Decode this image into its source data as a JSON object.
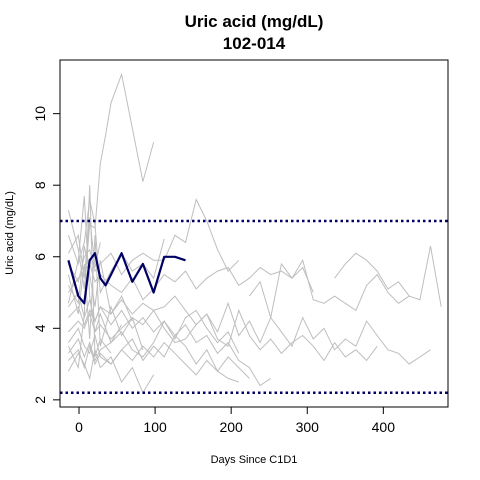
{
  "chart_data": {
    "type": "line",
    "title": "Uric acid (mg/dL)",
    "subtitle": "102-014",
    "xlabel": "Days Since C1D1",
    "ylabel": "Uric acid (mg/dL)",
    "xlim": [
      -25,
      485
    ],
    "ylim": [
      1.8,
      11.5
    ],
    "x_ticks": [
      0,
      100,
      200,
      300,
      400
    ],
    "y_ticks": [
      2,
      4,
      6,
      8,
      10
    ],
    "reference_lines": [
      7.0,
      2.2
    ],
    "colors": {
      "background_series": "#bebebe",
      "highlight": "#000066",
      "reference": "#000066"
    },
    "highlight_series": {
      "name": "102-014",
      "x": [
        -14,
        -1,
        7,
        14,
        21,
        28,
        35,
        42,
        56,
        70,
        84,
        98,
        112,
        126,
        140
      ],
      "y": [
        5.9,
        4.9,
        4.7,
        5.9,
        6.1,
        5.4,
        5.2,
        5.5,
        6.1,
        5.3,
        5.8,
        5.0,
        6.0,
        6.0,
        5.9
      ]
    },
    "background_series": [
      {
        "x": [
          -14,
          -1,
          7,
          14,
          21,
          28,
          35,
          42,
          56,
          70,
          84,
          98
        ],
        "y": [
          7.3,
          6.2,
          5.1,
          6.9,
          6.8,
          8.6,
          9.4,
          10.3,
          11.1,
          9.6,
          8.1,
          9.2
        ]
      },
      {
        "x": [
          -14,
          -1,
          7,
          14,
          21,
          28,
          42,
          56,
          70,
          84,
          98,
          112
        ],
        "y": [
          6.6,
          5.8,
          6.4,
          7.6,
          6.9,
          5.0,
          5.6,
          6.1,
          5.6,
          5.8,
          5.4,
          6.5
        ]
      },
      {
        "x": [
          -14,
          -1,
          7,
          14,
          21,
          28,
          42,
          56,
          70,
          84,
          98,
          112,
          126,
          140,
          154,
          168,
          182,
          196,
          210
        ],
        "y": [
          5.8,
          5.3,
          6.0,
          6.2,
          5.6,
          5.8,
          6.1,
          5.5,
          5.9,
          6.1,
          5.9,
          5.9,
          6.6,
          6.4,
          7.6,
          7.0,
          6.2,
          5.6,
          5.9
        ]
      },
      {
        "x": [
          -14,
          -1,
          7,
          14,
          21,
          28,
          42,
          56,
          70,
          84,
          98,
          112,
          126,
          140,
          154,
          168,
          182,
          196,
          210,
          224,
          238,
          252,
          266,
          280,
          294,
          308
        ],
        "y": [
          5.0,
          5.4,
          5.6,
          5.8,
          5.3,
          5.5,
          5.2,
          5.0,
          5.4,
          4.8,
          5.1,
          5.5,
          5.3,
          5.6,
          5.1,
          5.4,
          5.6,
          5.7,
          5.2,
          5.4,
          5.7,
          5.5,
          5.6,
          5.4,
          5.7,
          5.0
        ]
      },
      {
        "x": [
          336,
          350,
          364,
          378,
          392,
          406,
          420,
          434,
          448,
          462,
          476
        ],
        "y": [
          5.4,
          5.8,
          6.1,
          5.9,
          5.6,
          5.1,
          5.3,
          4.9,
          4.8,
          6.3,
          4.6
        ]
      },
      {
        "x": [
          224,
          238,
          252,
          266,
          280,
          294,
          308,
          322,
          336,
          350,
          364,
          378,
          392,
          406,
          420,
          434
        ],
        "y": [
          4.9,
          5.3,
          4.3,
          5.8,
          5.4,
          5.9,
          4.8,
          4.7,
          4.9,
          4.7,
          4.5,
          5.2,
          5.5,
          5.0,
          4.7,
          4.9
        ]
      },
      {
        "x": [
          -14,
          -1,
          7,
          14,
          21,
          28,
          42,
          56,
          70,
          84,
          98,
          112,
          126,
          140,
          154,
          168,
          182,
          196,
          210,
          224,
          238,
          252,
          266,
          280,
          294,
          308,
          322,
          336,
          350,
          364,
          378,
          392,
          406,
          420,
          434,
          448,
          462
        ],
        "y": [
          4.3,
          4.6,
          4.1,
          4.5,
          4.2,
          4.6,
          4.4,
          4.8,
          4.4,
          4.7,
          4.5,
          4.6,
          4.9,
          4.5,
          4.1,
          4.4,
          3.9,
          4.7,
          3.8,
          4.2,
          3.6,
          4.3,
          3.9,
          3.5,
          4.3,
          3.7,
          4.0,
          3.4,
          3.7,
          3.5,
          4.2,
          3.8,
          3.4,
          3.3,
          3.0,
          3.2,
          3.4
        ]
      },
      {
        "x": [
          -14,
          -1,
          7,
          14,
          21,
          28,
          42,
          56,
          70,
          84,
          98,
          112,
          126,
          140,
          154,
          168,
          182,
          196,
          210,
          224,
          238,
          252,
          266,
          280,
          294,
          308,
          322,
          336,
          350,
          364,
          378,
          392
        ],
        "y": [
          3.9,
          4.2,
          4.0,
          4.4,
          3.9,
          4.1,
          3.7,
          4.0,
          4.3,
          4.1,
          4.5,
          4.0,
          3.6,
          3.7,
          4.1,
          4.4,
          3.7,
          3.5,
          4.5,
          3.8,
          3.4,
          3.7,
          3.3,
          3.6,
          3.8,
          3.5,
          3.1,
          3.6,
          3.2,
          3.4,
          3.1,
          3.5
        ]
      },
      {
        "x": [
          -14,
          -1,
          7,
          14,
          21,
          28,
          42,
          56,
          70,
          84,
          98,
          112,
          126,
          140,
          154,
          168,
          182,
          196,
          210
        ],
        "y": [
          3.3,
          3.7,
          3.2,
          3.6,
          3.1,
          3.4,
          3.6,
          3.9,
          3.4,
          3.2,
          3.6,
          4.2,
          3.7,
          4.3,
          4.5,
          4.0,
          3.6,
          3.9,
          3.3
        ]
      },
      {
        "x": [
          -14,
          -1,
          7,
          14,
          21,
          28,
          42,
          56,
          70,
          84,
          98,
          112,
          126,
          140,
          154,
          168,
          182,
          196,
          210,
          224
        ],
        "y": [
          3.1,
          3.4,
          2.9,
          3.5,
          3.0,
          3.3,
          3.0,
          3.4,
          3.7,
          3.1,
          3.5,
          3.2,
          3.8,
          3.5,
          3.0,
          3.4,
          2.8,
          3.2,
          2.9,
          2.6
        ]
      },
      {
        "x": [
          -14,
          -1,
          7,
          14,
          21,
          28,
          42,
          56,
          70,
          84,
          98,
          112,
          126,
          140,
          154,
          168,
          182,
          196,
          210
        ],
        "y": [
          3.6,
          4.0,
          3.5,
          3.3,
          3.8,
          3.2,
          3.0,
          3.4,
          3.1,
          3.5,
          3.2,
          3.6,
          3.3,
          3.0,
          2.7,
          3.1,
          2.8,
          2.6,
          2.5
        ]
      },
      {
        "x": [
          -14,
          -1,
          7,
          14,
          21,
          28,
          42,
          56,
          70,
          84,
          98
        ],
        "y": [
          2.8,
          3.3,
          3.0,
          2.6,
          3.4,
          2.9,
          3.2,
          2.5,
          2.9,
          2.2,
          2.7
        ]
      },
      {
        "x": [
          -14,
          -1,
          7,
          14,
          21,
          28,
          42,
          56,
          70,
          84,
          98,
          112,
          126,
          140,
          154,
          168,
          182,
          196,
          210,
          224,
          238,
          252
        ],
        "y": [
          4.6,
          5.0,
          4.3,
          4.8,
          4.2,
          4.6,
          4.1,
          4.5,
          4.0,
          4.3,
          3.9,
          4.2,
          3.8,
          4.1,
          3.6,
          3.8,
          3.3,
          3.6,
          3.1,
          2.9,
          2.4,
          2.6
        ]
      },
      {
        "x": [
          -14,
          -1,
          7,
          14,
          21,
          28,
          42,
          56,
          70
        ],
        "y": [
          5.2,
          4.7,
          6.3,
          5.5,
          4.6,
          5.9,
          4.4,
          4.9,
          4.2
        ]
      },
      {
        "x": [
          -14,
          -1,
          7,
          14,
          21,
          28
        ],
        "y": [
          6.1,
          6.6,
          5.4,
          7.1,
          5.7,
          6.4
        ]
      },
      {
        "x": [
          -14,
          -1,
          7,
          14,
          21,
          28,
          42,
          56
        ],
        "y": [
          4.7,
          5.9,
          7.7,
          4.9,
          3.9,
          4.4,
          3.6,
          4.1
        ]
      },
      {
        "x": [
          -14,
          -1,
          7,
          14,
          21,
          28,
          42
        ],
        "y": [
          3.5,
          2.9,
          4.4,
          8.0,
          3.2,
          3.7,
          3.3
        ]
      },
      {
        "x": [
          -14,
          -1,
          7,
          14,
          21,
          28,
          42,
          56,
          70,
          84
        ],
        "y": [
          5.5,
          4.4,
          5.8,
          3.7,
          6.6,
          3.5,
          4.6,
          3.8,
          4.3,
          3.4
        ]
      }
    ]
  }
}
